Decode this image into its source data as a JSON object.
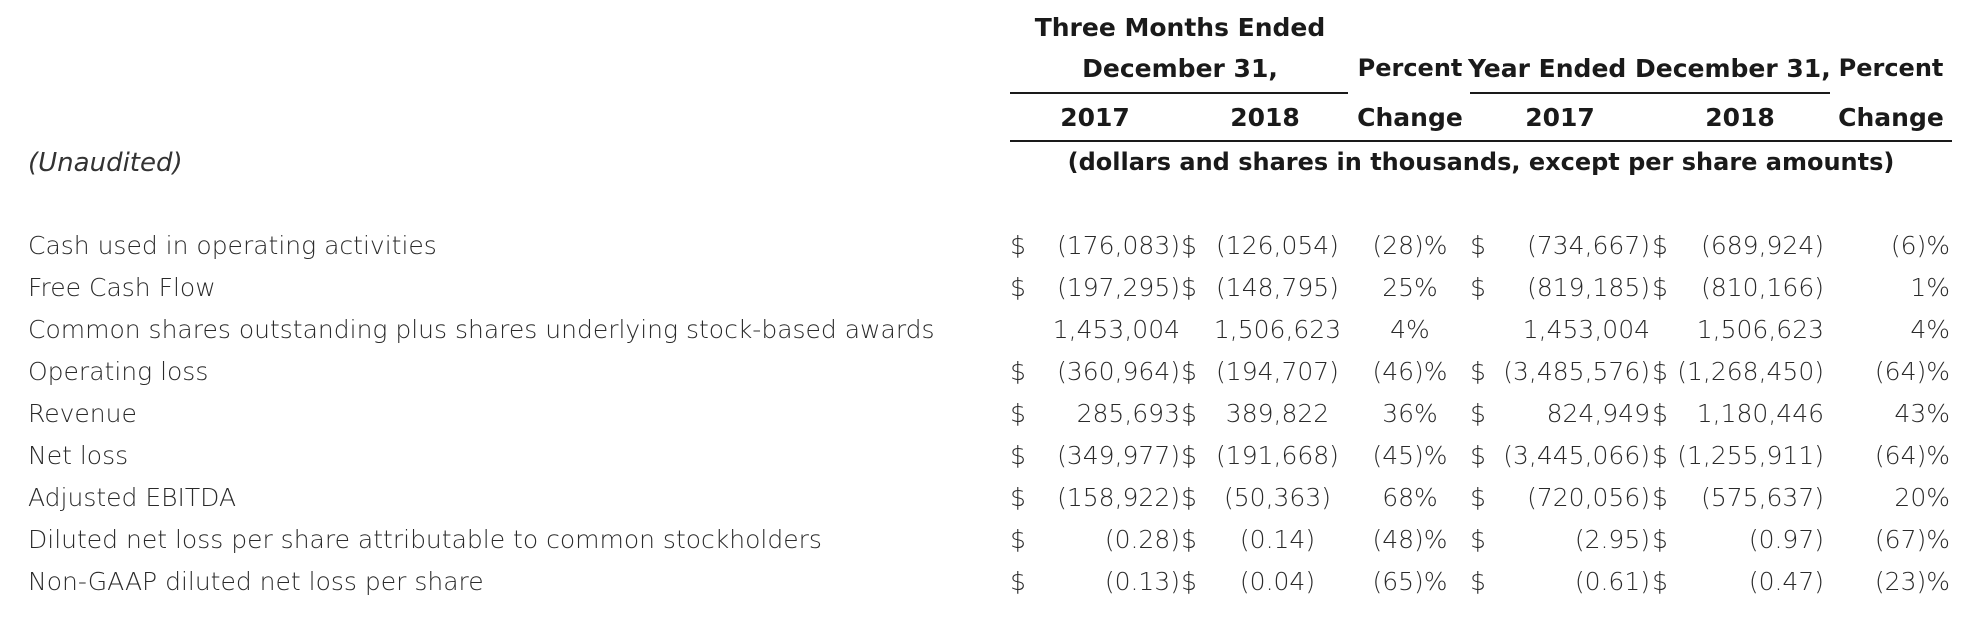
{
  "headers": {
    "group1_line1": "Three Months Ended",
    "group1_line2": "December 31,",
    "group1_col1": "2017",
    "group1_col2": "2018",
    "pct1_line1": "Percent",
    "pct1_line2": "Change",
    "group2_line1": "Year Ended December 31,",
    "group2_col1": "2017",
    "group2_col2": "2018",
    "pct2_line1": "Percent",
    "pct2_line2": "Change",
    "units": "(dollars and shares in thousands, except per share amounts)"
  },
  "unaudited": "(Unaudited)",
  "rows": [
    {
      "label": "Cash used in operating activities",
      "d1": "$",
      "q2017": "(176,083)",
      "d2": "$",
      "q2018": "(126,054)",
      "pct1": "(28)%",
      "d3": "$",
      "y2017": "(734,667)",
      "d4": "$",
      "y2018": "(689,924)",
      "pct2": "(6)%"
    },
    {
      "label": "Free Cash Flow",
      "d1": "$",
      "q2017": "(197,295)",
      "d2": "$",
      "q2018": "(148,795)",
      "pct1": "25%",
      "d3": "$",
      "y2017": "(819,185)",
      "d4": "$",
      "y2018": "(810,166)",
      "pct2": "1%"
    },
    {
      "label": "Common shares outstanding plus shares underlying stock-based awards",
      "d1": "",
      "q2017": "1,453,004",
      "d2": "",
      "q2018": "1,506,623",
      "pct1": "4%",
      "d3": "",
      "y2017": "1,453,004",
      "d4": "",
      "y2018": "1,506,623",
      "pct2": "4%"
    },
    {
      "label": "Operating loss",
      "d1": "$",
      "q2017": "(360,964)",
      "d2": "$",
      "q2018": "(194,707)",
      "pct1": "(46)%",
      "d3": "$",
      "y2017": "(3,485,576)",
      "d4": "$",
      "y2018": "(1,268,450)",
      "pct2": "(64)%"
    },
    {
      "label": "Revenue",
      "d1": "$",
      "q2017": "285,693",
      "d2": "$",
      "q2018": "389,822",
      "pct1": "36%",
      "d3": "$",
      "y2017": "824,949",
      "d4": "$",
      "y2018": "1,180,446",
      "pct2": "43%"
    },
    {
      "label": "Net loss",
      "d1": "$",
      "q2017": "(349,977)",
      "d2": "$",
      "q2018": "(191,668)",
      "pct1": "(45)%",
      "d3": "$",
      "y2017": "(3,445,066)",
      "d4": "$",
      "y2018": "(1,255,911)",
      "pct2": "(64)%"
    },
    {
      "label": "Adjusted EBITDA",
      "d1": "$",
      "q2017": "(158,922)",
      "d2": "$",
      "q2018": "(50,363)",
      "pct1": "68%",
      "d3": "$",
      "y2017": "(720,056)",
      "d4": "$",
      "y2018": "(575,637)",
      "pct2": "20%"
    },
    {
      "label": "Diluted net loss per share attributable to common stockholders",
      "d1": "$",
      "q2017": "(0.28)",
      "d2": "$",
      "q2018": "(0.14)",
      "pct1": "(48)%",
      "d3": "$",
      "y2017": "(2.95)",
      "d4": "$",
      "y2018": "(0.97)",
      "pct2": "(67)%"
    },
    {
      "label": "Non-GAAP diluted net loss per share",
      "d1": "$",
      "q2017": "(0.13)",
      "d2": "$",
      "q2018": "(0.04)",
      "pct1": "(65)%",
      "d3": "$",
      "y2017": "(0.61)",
      "d4": "$",
      "y2018": "(0.47)",
      "pct2": "(23)%"
    }
  ]
}
